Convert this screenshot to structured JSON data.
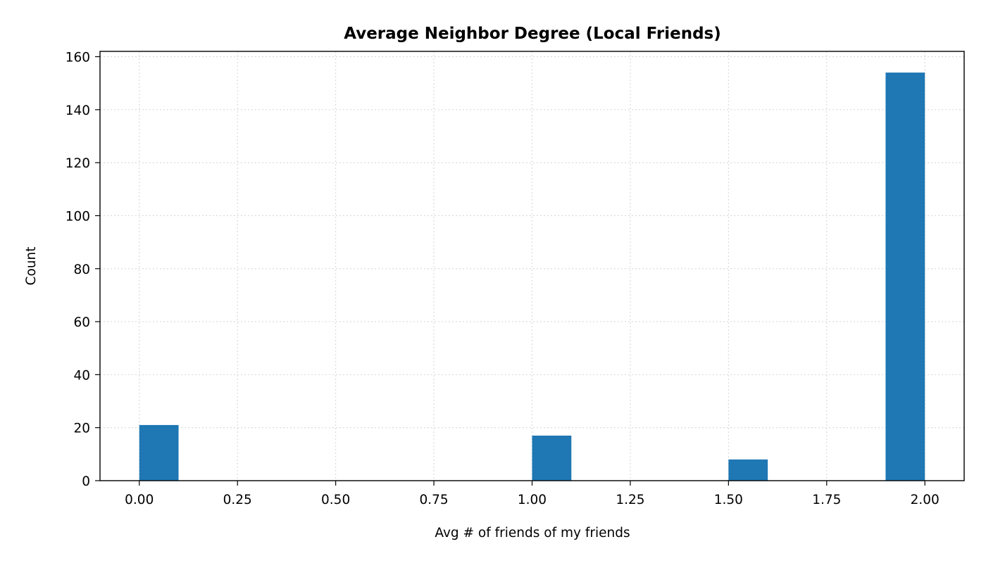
{
  "chart_data": {
    "type": "bar",
    "title": "Average Neighbor Degree (Local Friends)",
    "xlabel": "Avg # of friends of my friends",
    "ylabel": "Count",
    "xlim": [
      -0.1,
      2.1
    ],
    "ylim": [
      0,
      162
    ],
    "xticks": [
      0.0,
      0.25,
      0.5,
      0.75,
      1.0,
      1.25,
      1.5,
      1.75,
      2.0
    ],
    "xtick_labels": [
      "0.00",
      "0.25",
      "0.50",
      "0.75",
      "1.00",
      "1.25",
      "1.50",
      "1.75",
      "2.00"
    ],
    "yticks": [
      0,
      20,
      40,
      60,
      80,
      100,
      120,
      140,
      160
    ],
    "ytick_labels": [
      "0",
      "20",
      "40",
      "60",
      "80",
      "100",
      "120",
      "140",
      "160"
    ],
    "bin_width": 0.1,
    "bins": [
      {
        "x_start": 0.0,
        "count": 21
      },
      {
        "x_start": 1.0,
        "count": 17
      },
      {
        "x_start": 1.5,
        "count": 8
      },
      {
        "x_start": 1.9,
        "count": 154
      }
    ],
    "bar_color": "#1f77b4",
    "grid": true,
    "legend": null
  }
}
